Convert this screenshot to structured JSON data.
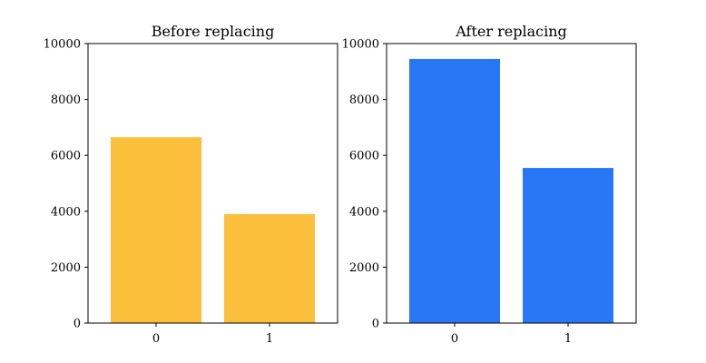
{
  "chart_data": [
    {
      "type": "bar",
      "title": "Before replacing",
      "categories": [
        "0",
        "1"
      ],
      "values": [
        6650,
        3900
      ],
      "ylim": [
        0,
        10000
      ],
      "yticks": [
        "0",
        "2000",
        "4000",
        "6000",
        "8000",
        "10000"
      ],
      "color": "#fbbf3c",
      "xlabel": "",
      "ylabel": ""
    },
    {
      "type": "bar",
      "title": "After replacing",
      "categories": [
        "0",
        "1"
      ],
      "values": [
        9450,
        5550
      ],
      "ylim": [
        0,
        10000
      ],
      "yticks": [
        "0",
        "2000",
        "4000",
        "6000",
        "8000",
        "10000"
      ],
      "color": "#2777f6",
      "xlabel": "",
      "ylabel": ""
    }
  ]
}
